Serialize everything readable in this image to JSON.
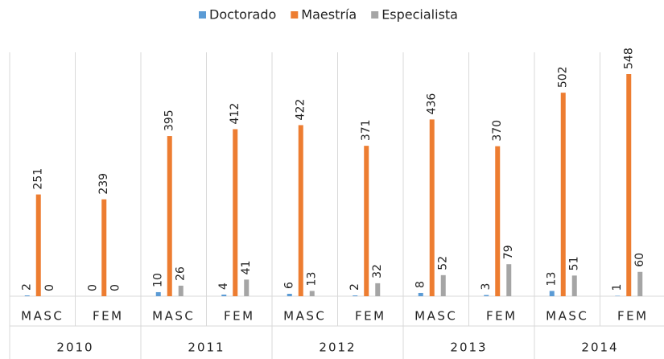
{
  "chart_data": {
    "type": "bar",
    "categories": [
      "MASC",
      "FEM",
      "MASC",
      "FEM",
      "MASC",
      "FEM",
      "MASC",
      "FEM",
      "MASC",
      "FEM"
    ],
    "groups": [
      "2010",
      "2011",
      "2012",
      "2013",
      "2014"
    ],
    "series": [
      {
        "name": "Doctorado",
        "color": "#5b9bd5",
        "values": [
          2,
          0,
          10,
          4,
          6,
          2,
          8,
          3,
          13,
          1
        ]
      },
      {
        "name": "Maestría",
        "color": "#ed7d31",
        "values": [
          251,
          239,
          395,
          412,
          422,
          371,
          436,
          370,
          502,
          548
        ]
      },
      {
        "name": "Especialista",
        "color": "#a5a5a5",
        "values": [
          0,
          0,
          26,
          41,
          13,
          32,
          52,
          79,
          51,
          60
        ]
      }
    ],
    "legend": "top"
  }
}
